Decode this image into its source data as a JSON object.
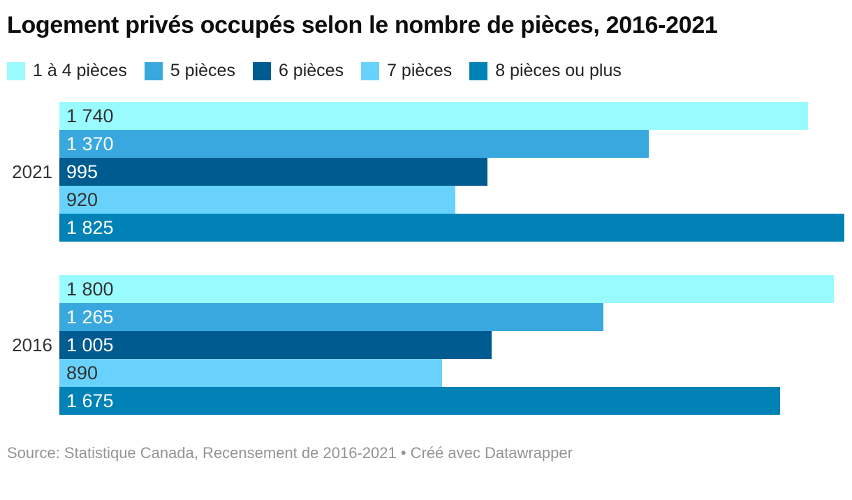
{
  "header": {
    "title": "Logement privés occupés selon le nombre de pièces, 2016-2021"
  },
  "footer": {
    "text": "Source: Statistique Canada, Recensement de 2016-2021 • Créé avec Datawrapper"
  },
  "colors": {
    "background": "#ffffff",
    "title_text": "#0d0d0d",
    "legend_text": "#222222",
    "group_label_text": "#333333",
    "footer_text": "#949494"
  },
  "chart_data": {
    "type": "bar",
    "orientation": "horizontal",
    "title": "Logement privés occupés selon le nombre de pièces, 2016-2021",
    "groups": [
      "2021",
      "2016"
    ],
    "series": [
      {
        "name": "1 à 4 pièces",
        "color": "#9AFBFF",
        "label_text_color": "#333333",
        "values": [
          1740,
          1800
        ],
        "value_labels": [
          "1 740",
          "1 800"
        ]
      },
      {
        "name": "5 pièces",
        "color": "#38A8DF",
        "label_text_color": "#FFFFFF",
        "values": [
          1370,
          1265
        ],
        "value_labels": [
          "1 370",
          "1 265"
        ]
      },
      {
        "name": "6 pièces",
        "color": "#005C90",
        "label_text_color": "#FFFFFF",
        "values": [
          995,
          1005
        ],
        "value_labels": [
          "995",
          "1 005"
        ]
      },
      {
        "name": "7 pièces",
        "color": "#69D2FC",
        "label_text_color": "#333333",
        "values": [
          920,
          890
        ],
        "value_labels": [
          "920",
          "890"
        ]
      },
      {
        "name": "8 pièces ou plus",
        "color": "#0082B6",
        "label_text_color": "#FFFFFF",
        "values": [
          1825,
          1675
        ],
        "value_labels": [
          "1 825",
          "1 675"
        ]
      }
    ],
    "xlim": [
      0,
      1825
    ],
    "grid": false,
    "axis_ticks": "none",
    "legend_position": "top",
    "value_label_position": "inside-left"
  }
}
